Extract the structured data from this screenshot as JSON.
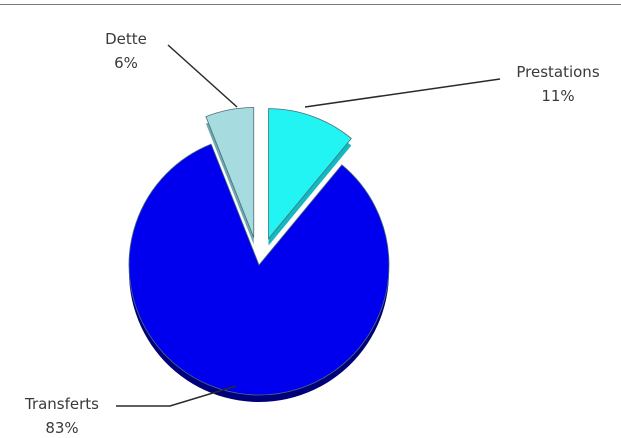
{
  "chart_data": {
    "type": "pie",
    "slices": [
      {
        "label": "Prestations",
        "value": 11,
        "value_label": "11%",
        "color": "#22f4f4",
        "side_color": "#14b8c0",
        "exploded": true
      },
      {
        "label": "Transferts",
        "value": 83,
        "value_label": "83%",
        "color": "#0000ee",
        "side_color": "#00007a",
        "exploded": false
      },
      {
        "label": "Dette",
        "value": 6,
        "value_label": "6%",
        "color": "#a6dbe0",
        "side_color": "#6fa9b0",
        "exploded": true
      }
    ],
    "start_angle_deg": 0,
    "direction": "clockwise",
    "style": "3d-exploded-pie",
    "legend": "none"
  }
}
